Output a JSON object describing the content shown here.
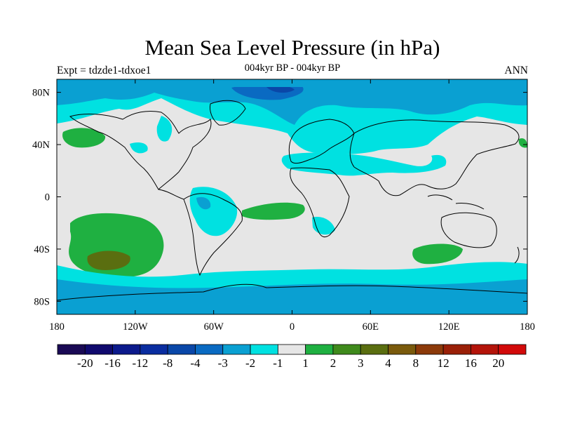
{
  "title": "Mean Sea Level Pressure (in hPa)",
  "subtitle": "004kyr BP - 004kyr BP",
  "left_label": "Expt = tdzde1-tdxoe1",
  "right_label": "ANN",
  "map": {
    "lon_range": [
      -180,
      180
    ],
    "lat_range": [
      -90,
      90
    ],
    "x_ticks": [
      {
        "value": -180,
        "label": "180"
      },
      {
        "value": -120,
        "label": "120W"
      },
      {
        "value": -60,
        "label": "60W"
      },
      {
        "value": 0,
        "label": "0"
      },
      {
        "value": 60,
        "label": "60E"
      },
      {
        "value": 120,
        "label": "120E"
      },
      {
        "value": 180,
        "label": "180"
      }
    ],
    "y_ticks": [
      {
        "value": 80,
        "label": "80N"
      },
      {
        "value": 40,
        "label": "40N"
      },
      {
        "value": 0,
        "label": "0"
      },
      {
        "value": -40,
        "label": "40S"
      },
      {
        "value": -80,
        "label": "80S"
      }
    ],
    "background_color": "#e6e6e6",
    "coastline_color": "#000000"
  },
  "colorbar": {
    "colors": [
      "#1a0a55",
      "#100a6e",
      "#0c1a8c",
      "#0a2da0",
      "#0a47a8",
      "#0a6ac2",
      "#0aa0d2",
      "#00e1e1",
      "#e6e6e6",
      "#1fb041",
      "#3f8a1c",
      "#5a6e10",
      "#7a5a0c",
      "#8c3a0a",
      "#9a2008",
      "#b4140a",
      "#d20a0a"
    ],
    "labels": [
      "-20",
      "-16",
      "-12",
      "-8",
      "-4",
      "-3",
      "-2",
      "-1",
      "1",
      "2",
      "3",
      "4",
      "8",
      "12",
      "16",
      "20"
    ]
  }
}
